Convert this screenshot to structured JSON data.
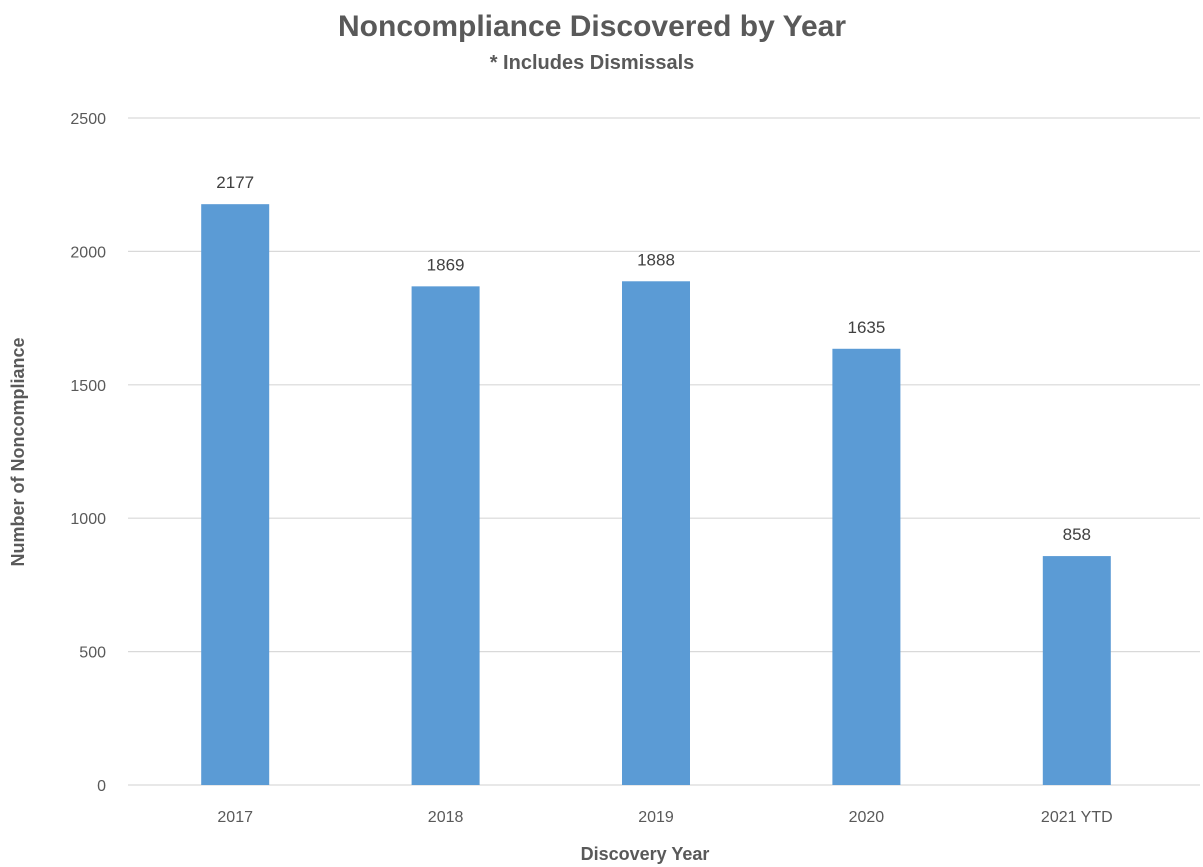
{
  "chart_data": {
    "type": "bar",
    "title": "Noncompliance Discovered by Year",
    "subtitle": "* Includes Dismissals",
    "xlabel": "Discovery Year",
    "ylabel": "Number of Noncompliance",
    "categories": [
      "2017",
      "2018",
      "2019",
      "2020",
      "2021 YTD"
    ],
    "values": [
      2177,
      1869,
      1888,
      1635,
      858
    ],
    "data_labels": [
      "2177",
      "1869",
      "1888",
      "1635",
      "858"
    ],
    "ylim": [
      0,
      2500
    ],
    "yticks": [
      "0",
      "500",
      "1000",
      "1500",
      "2000",
      "2500"
    ],
    "grid": true,
    "legend": "none",
    "bar_color": "#5b9bd5"
  }
}
